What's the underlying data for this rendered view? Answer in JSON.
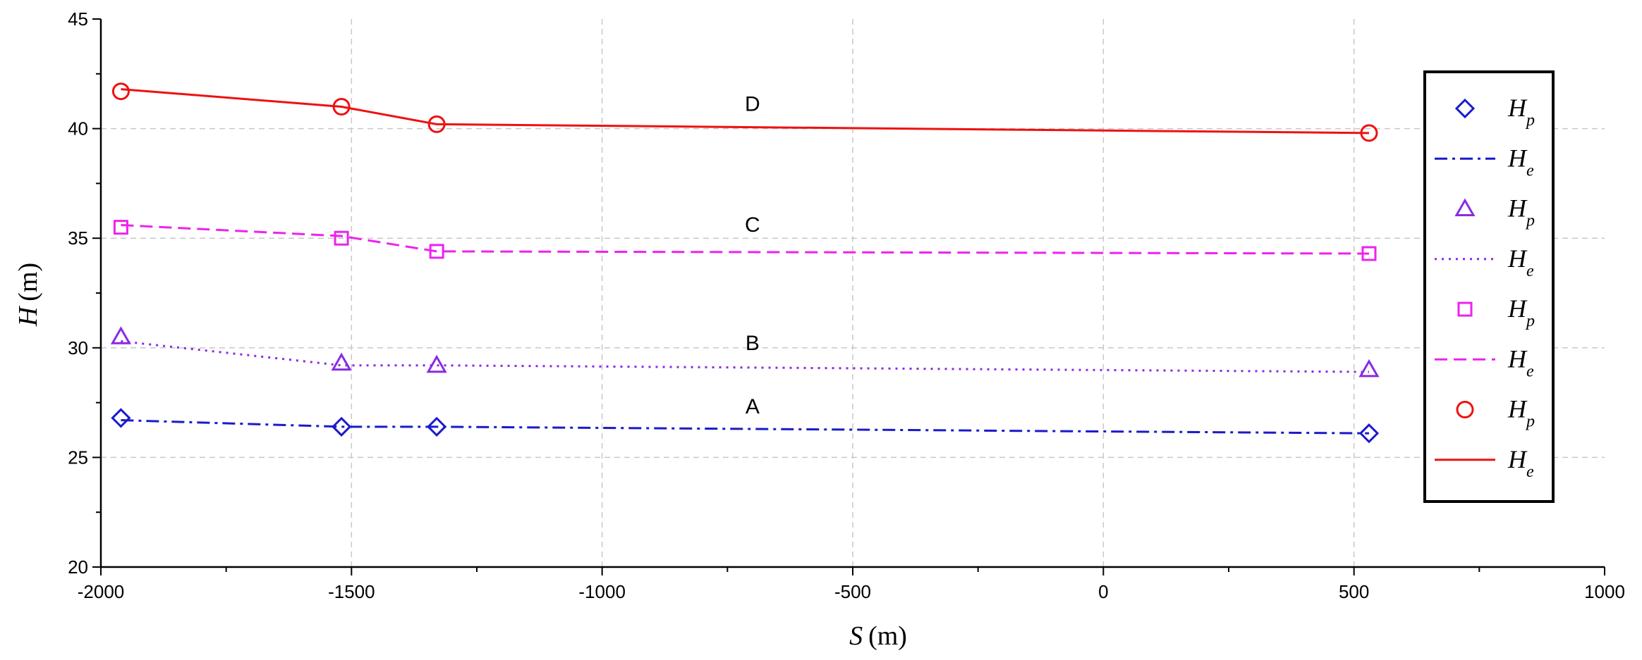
{
  "chart_data": {
    "type": "line",
    "xlabel": {
      "var": "S",
      "unit": "(m)"
    },
    "ylabel": {
      "var": "H",
      "unit": "(m)"
    },
    "xlim": [
      -2000,
      1000
    ],
    "ylim": [
      20,
      45
    ],
    "xticks": [
      -2000,
      -1500,
      -1000,
      -500,
      0,
      500,
      1000
    ],
    "yticks": [
      20,
      25,
      30,
      35,
      40,
      45
    ],
    "grid": true,
    "legend_position": "right",
    "series": [
      {
        "label": "A",
        "color": "#1a1acc",
        "marker": "diamond",
        "line_style": "dashdot",
        "points": {
          "x": [
            -1960,
            -1520,
            -1330,
            530
          ],
          "y": [
            26.8,
            26.4,
            26.4,
            26.1
          ]
        },
        "line": {
          "x": [
            -1960,
            -1520,
            -1330,
            530
          ],
          "y": [
            26.7,
            26.4,
            26.4,
            26.1
          ]
        }
      },
      {
        "label": "B",
        "color": "#8a2be2",
        "marker": "triangle",
        "line_style": "dotted",
        "points": {
          "x": [
            -1960,
            -1520,
            -1330,
            530
          ],
          "y": [
            30.5,
            29.3,
            29.2,
            29.0
          ]
        },
        "line": {
          "x": [
            -1960,
            -1520,
            -1330,
            530
          ],
          "y": [
            30.3,
            29.2,
            29.2,
            28.9
          ]
        }
      },
      {
        "label": "C",
        "color": "#ee22ee",
        "marker": "square",
        "line_style": "dashed",
        "points": {
          "x": [
            -1960,
            -1520,
            -1330,
            530
          ],
          "y": [
            35.5,
            35.0,
            34.4,
            34.3
          ]
        },
        "line": {
          "x": [
            -1960,
            -1520,
            -1330,
            530
          ],
          "y": [
            35.6,
            35.1,
            34.4,
            34.3
          ]
        }
      },
      {
        "label": "D",
        "color": "#ee1111",
        "marker": "circle",
        "line_style": "solid",
        "points": {
          "x": [
            -1960,
            -1520,
            -1330,
            530
          ],
          "y": [
            41.7,
            41.0,
            40.2,
            39.8
          ]
        },
        "line": {
          "x": [
            -1960,
            -1520,
            -1330,
            530
          ],
          "y": [
            41.8,
            41.0,
            40.2,
            39.8
          ]
        }
      }
    ],
    "series_tags": [
      {
        "text": "D",
        "x": -700,
        "y": 40.8
      },
      {
        "text": "C",
        "x": -700,
        "y": 35.3
      },
      {
        "text": "B",
        "x": -700,
        "y": 29.9
      },
      {
        "text": "A",
        "x": -700,
        "y": 27.0
      }
    ],
    "legend": [
      {
        "kind": "marker",
        "marker": "diamond",
        "color": "#1a1acc",
        "main": "H",
        "sub": "p"
      },
      {
        "kind": "line",
        "line_style": "dashdot",
        "color": "#1a1acc",
        "main": "H",
        "sub": "e"
      },
      {
        "kind": "marker",
        "marker": "triangle",
        "color": "#8a2be2",
        "main": "H",
        "sub": "p"
      },
      {
        "kind": "line",
        "line_style": "dotted",
        "color": "#8a2be2",
        "main": "H",
        "sub": "e"
      },
      {
        "kind": "marker",
        "marker": "square",
        "color": "#ee22ee",
        "main": "H",
        "sub": "p"
      },
      {
        "kind": "line",
        "line_style": "dashed",
        "color": "#ee22ee",
        "main": "H",
        "sub": "e"
      },
      {
        "kind": "marker",
        "marker": "circle",
        "color": "#ee1111",
        "main": "H",
        "sub": "p"
      },
      {
        "kind": "line",
        "line_style": "solid",
        "color": "#ee1111",
        "main": "H",
        "sub": "e"
      }
    ]
  }
}
